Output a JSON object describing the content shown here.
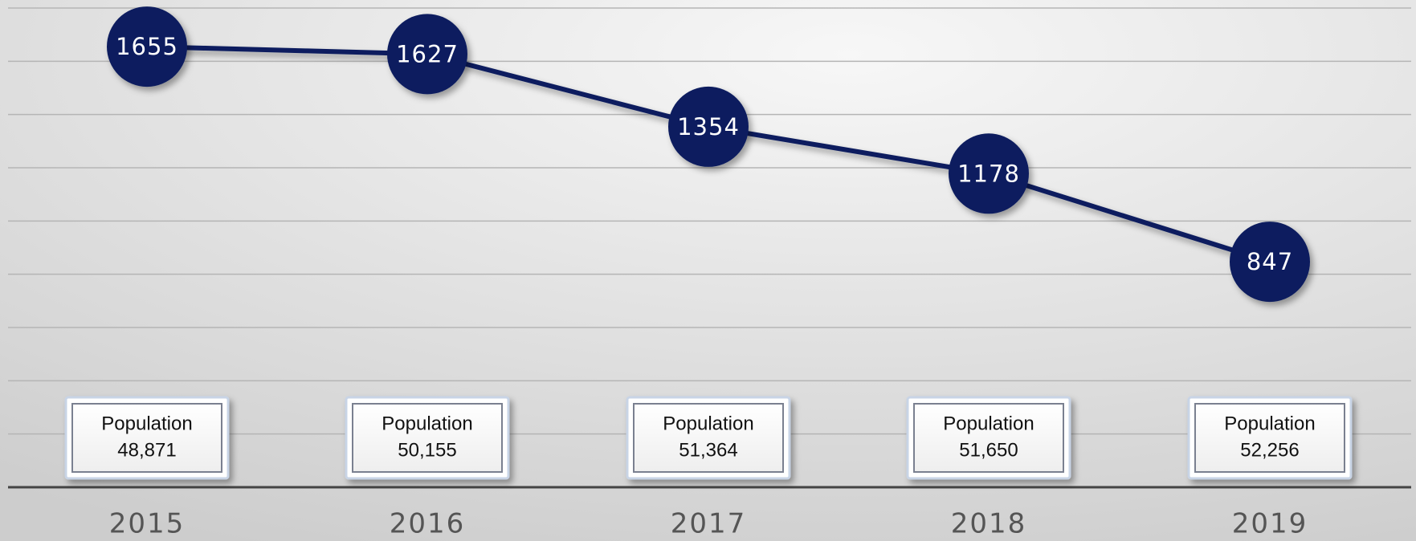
{
  "chart_data": {
    "type": "line",
    "categories": [
      "2015",
      "2016",
      "2017",
      "2018",
      "2019"
    ],
    "values": [
      1655,
      1627,
      1354,
      1178,
      847
    ],
    "color": "#0b1f5e",
    "ylim": [
      0,
      1800
    ],
    "yticks": [
      0,
      200,
      400,
      600,
      800,
      1000,
      1200,
      1400,
      1600,
      1800
    ],
    "grid": true,
    "population": {
      "label": "Population",
      "values": [
        "48,871",
        "50,155",
        "51,364",
        "51,650",
        "52,256"
      ]
    }
  }
}
